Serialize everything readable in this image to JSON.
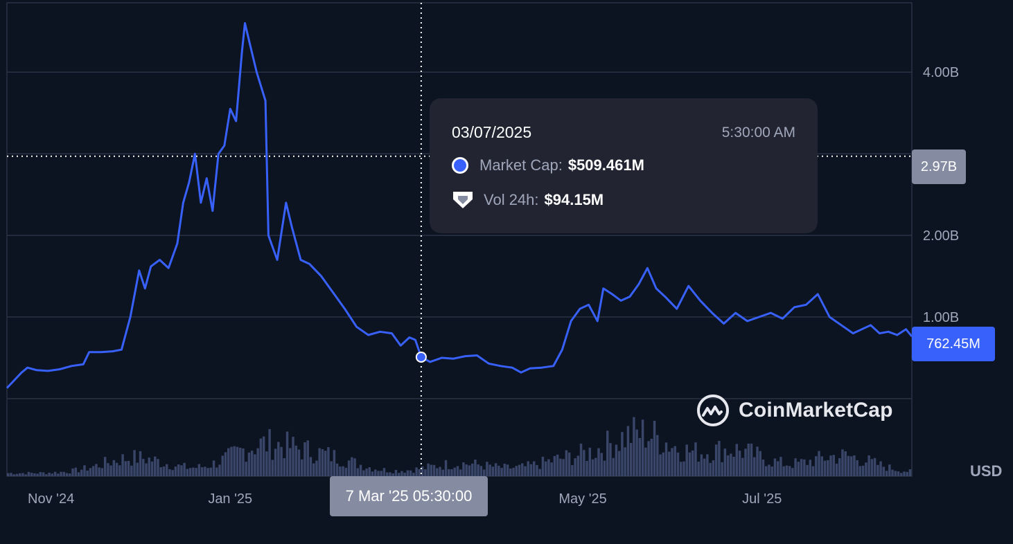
{
  "chart_data": {
    "type": "line",
    "series": [
      {
        "name": "Market Cap",
        "color": "#3861fb",
        "points": [
          [
            "2024-10-17",
            0.13
          ],
          [
            "2024-10-22",
            0.32
          ],
          [
            "2024-10-24",
            0.38
          ],
          [
            "2024-10-27",
            0.35
          ],
          [
            "2024-10-31",
            0.34
          ],
          [
            "2024-11-04",
            0.36
          ],
          [
            "2024-11-08",
            0.4
          ],
          [
            "2024-11-12",
            0.42
          ],
          [
            "2024-11-14",
            0.57
          ],
          [
            "2024-11-18",
            0.57
          ],
          [
            "2024-11-22",
            0.58
          ],
          [
            "2024-11-25",
            0.6
          ],
          [
            "2024-11-28",
            1.0
          ],
          [
            "2024-12-01",
            1.57
          ],
          [
            "2024-12-03",
            1.35
          ],
          [
            "2024-12-05",
            1.62
          ],
          [
            "2024-12-08",
            1.7
          ],
          [
            "2024-12-11",
            1.6
          ],
          [
            "2024-12-14",
            1.9
          ],
          [
            "2024-12-16",
            2.4
          ],
          [
            "2024-12-18",
            2.65
          ],
          [
            "2024-12-20",
            3.0
          ],
          [
            "2024-12-22",
            2.4
          ],
          [
            "2024-12-24",
            2.7
          ],
          [
            "2024-12-26",
            2.3
          ],
          [
            "2024-12-28",
            3.0
          ],
          [
            "2024-12-30",
            3.1
          ],
          [
            "2025-01-01",
            3.55
          ],
          [
            "2025-01-03",
            3.4
          ],
          [
            "2025-01-05",
            4.25
          ],
          [
            "2025-01-06",
            4.6
          ],
          [
            "2025-01-08",
            4.3
          ],
          [
            "2025-01-10",
            4.0
          ],
          [
            "2025-01-13",
            3.65
          ],
          [
            "2025-01-14",
            2.0
          ],
          [
            "2025-01-17",
            1.7
          ],
          [
            "2025-01-20",
            2.4
          ],
          [
            "2025-01-22",
            2.1
          ],
          [
            "2025-01-25",
            1.7
          ],
          [
            "2025-01-28",
            1.65
          ],
          [
            "2025-02-01",
            1.5
          ],
          [
            "2025-02-05",
            1.3
          ],
          [
            "2025-02-09",
            1.1
          ],
          [
            "2025-02-13",
            0.88
          ],
          [
            "2025-02-17",
            0.78
          ],
          [
            "2025-02-21",
            0.82
          ],
          [
            "2025-02-25",
            0.8
          ],
          [
            "2025-02-28",
            0.65
          ],
          [
            "2025-03-03",
            0.75
          ],
          [
            "2025-03-05",
            0.72
          ],
          [
            "2025-03-07",
            0.509
          ],
          [
            "2025-03-10",
            0.45
          ],
          [
            "2025-03-14",
            0.5
          ],
          [
            "2025-03-18",
            0.49
          ],
          [
            "2025-03-22",
            0.52
          ],
          [
            "2025-03-26",
            0.53
          ],
          [
            "2025-03-30",
            0.43
          ],
          [
            "2025-04-03",
            0.4
          ],
          [
            "2025-04-07",
            0.38
          ],
          [
            "2025-04-10",
            0.32
          ],
          [
            "2025-04-13",
            0.37
          ],
          [
            "2025-04-17",
            0.38
          ],
          [
            "2025-04-21",
            0.4
          ],
          [
            "2025-04-24",
            0.6
          ],
          [
            "2025-04-27",
            0.95
          ],
          [
            "2025-04-30",
            1.1
          ],
          [
            "2025-05-03",
            1.15
          ],
          [
            "2025-05-06",
            0.95
          ],
          [
            "2025-05-08",
            1.35
          ],
          [
            "2025-05-11",
            1.28
          ],
          [
            "2025-05-14",
            1.2
          ],
          [
            "2025-05-17",
            1.25
          ],
          [
            "2025-05-20",
            1.4
          ],
          [
            "2025-05-23",
            1.6
          ],
          [
            "2025-05-26",
            1.35
          ],
          [
            "2025-05-29",
            1.25
          ],
          [
            "2025-06-02",
            1.1
          ],
          [
            "2025-06-06",
            1.38
          ],
          [
            "2025-06-10",
            1.2
          ],
          [
            "2025-06-14",
            1.05
          ],
          [
            "2025-06-18",
            0.92
          ],
          [
            "2025-06-22",
            1.05
          ],
          [
            "2025-06-26",
            0.95
          ],
          [
            "2025-06-30",
            1.0
          ],
          [
            "2025-07-04",
            1.05
          ],
          [
            "2025-07-08",
            0.98
          ],
          [
            "2025-07-12",
            1.12
          ],
          [
            "2025-07-16",
            1.15
          ],
          [
            "2025-07-20",
            1.28
          ],
          [
            "2025-07-24",
            1.0
          ],
          [
            "2025-07-28",
            0.9
          ],
          [
            "2025-08-01",
            0.8
          ],
          [
            "2025-08-04",
            0.85
          ],
          [
            "2025-08-07",
            0.9
          ],
          [
            "2025-08-10",
            0.8
          ],
          [
            "2025-08-13",
            0.82
          ],
          [
            "2025-08-16",
            0.78
          ],
          [
            "2025-08-19",
            0.85
          ],
          [
            "2025-08-21",
            0.762
          ]
        ]
      }
    ],
    "volume_color": "#3a4669",
    "ylim_billions": [
      -0.95,
      4.85
    ],
    "y_ticks": [
      {
        "value": 1.0,
        "label": "1.00B"
      },
      {
        "value": 2.0,
        "label": "2.00B"
      },
      {
        "value": 4.0,
        "label": "4.00B"
      }
    ],
    "x_ticks": [
      {
        "date": "2024-11-01",
        "label": "Nov '24"
      },
      {
        "date": "2025-01-01",
        "label": "Jan '25"
      },
      {
        "date": "2025-05-01",
        "label": "May '25"
      },
      {
        "date": "2025-07-01",
        "label": "Jul '25"
      }
    ],
    "crosshair": {
      "date": "2025-03-07",
      "value": 0.509,
      "y_value": 2.97
    },
    "grid": true
  },
  "tooltip": {
    "date": "03/07/2025",
    "time": "5:30:00 AM",
    "market_cap_label": "Market Cap:",
    "market_cap_value": "$509.461M",
    "vol_label": "Vol 24h:",
    "vol_value": "$94.15M"
  },
  "badges": {
    "hover_value": "2.97B",
    "last_value": "762.45M",
    "hover_date": "7 Mar '25 05:30:00"
  },
  "currency": "USD",
  "brand": "CoinMarketCap"
}
